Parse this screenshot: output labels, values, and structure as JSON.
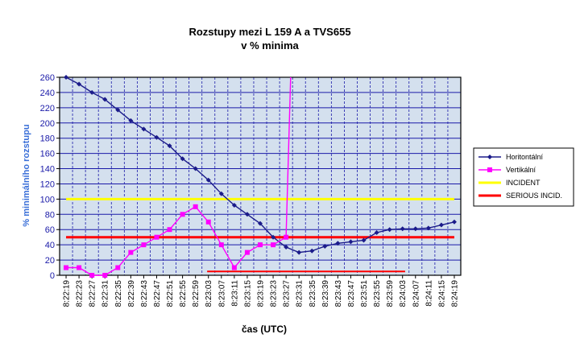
{
  "chart_data": {
    "type": "line",
    "title": "Rozstupy mezi  L 159 A a TVS655",
    "subtitle": "v % minima",
    "xlabel": "čas (UTC)",
    "ylabel": "% minimálního rozstupu",
    "ylim": [
      0,
      260
    ],
    "yticks": [
      0,
      20,
      40,
      60,
      80,
      100,
      120,
      140,
      160,
      180,
      200,
      220,
      240,
      260
    ],
    "grid": true,
    "legend_position": "right",
    "x": [
      "8:22:19",
      "8:22:23",
      "8:22:27",
      "8:22:31",
      "8:22:35",
      "8:22:39",
      "8:22:43",
      "8:22:47",
      "8:22:51",
      "8:22:55",
      "8:22:59",
      "8:23:03",
      "8:23:07",
      "8:23:11",
      "8:23:15",
      "8:23:19",
      "8:23:23",
      "8:23:27",
      "8:23:31",
      "8:23:35",
      "8:23:39",
      "8:23:43",
      "8:23:47",
      "8:23:51",
      "8:23:55",
      "8:23:59",
      "8:24:03",
      "8:24:07",
      "8:24:11",
      "8:24:15",
      "8:24:19"
    ],
    "series": [
      {
        "name": "Horitontální",
        "color": "#1b1b8a",
        "marker": "diamond",
        "values": [
          260,
          251,
          240,
          231,
          217,
          203,
          192,
          181,
          170,
          153,
          140,
          125,
          107,
          92,
          80,
          68,
          50,
          37,
          30,
          32,
          38,
          42,
          44,
          46,
          56,
          60,
          61,
          61,
          62,
          66,
          70
        ]
      },
      {
        "name": "Vertikální",
        "color": "#ff00ff",
        "marker": "square",
        "values": [
          10,
          10,
          0,
          0,
          10,
          30,
          40,
          50,
          60,
          80,
          90,
          70,
          40,
          10,
          30,
          40,
          40,
          50,
          null,
          null,
          null,
          null,
          null,
          null,
          null,
          null,
          null,
          null,
          null,
          null,
          null
        ],
        "spike": {
          "from_index": 17,
          "to_index": 17.35,
          "to_value": 260
        }
      },
      {
        "name": "INCIDENT",
        "color": "#ffff00",
        "marker": "none",
        "values": [
          100,
          100,
          100,
          100,
          100,
          100,
          100,
          100,
          100,
          100,
          100,
          100,
          100,
          100,
          100,
          100,
          100,
          100,
          100,
          100,
          100,
          100,
          100,
          100,
          100,
          100,
          100,
          100,
          100,
          100,
          100
        ]
      },
      {
        "name": "SERIOUS INCID.",
        "color": "#ff0000",
        "marker": "none",
        "values": [
          50,
          50,
          50,
          50,
          50,
          50,
          50,
          50,
          50,
          50,
          50,
          50,
          50,
          50,
          50,
          50,
          50,
          50,
          50,
          50,
          50,
          50,
          50,
          50,
          50,
          50,
          50,
          50,
          50,
          50,
          50
        ]
      }
    ],
    "annotation_line": {
      "color": "#ff0000",
      "value": 5,
      "from_index": 10.9,
      "to_index": 26.2
    },
    "plot_background": "#d4e0ee",
    "grid_color": "#1a1aa8"
  }
}
